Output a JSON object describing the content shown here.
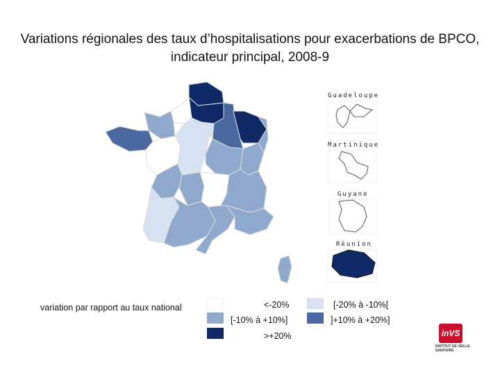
{
  "title": "Variations régionales des taux d’hospitalisations pour exacerbations de BPCO, indicateur principal, 2008-9",
  "colors": {
    "lt_m20": "#ffffff",
    "m20_m10": "#d6e2f2",
    "m10_p10": "#8ea9cb",
    "p10_p20": "#4a68a0",
    "gt_p20": "#0f2a66",
    "border": "#dddddd"
  },
  "overseas": {
    "guadeloupe": {
      "label": "Guadeloupe",
      "class": "lt_m20"
    },
    "martinique": {
      "label": "Martinique",
      "class": "lt_m20"
    },
    "guyane": {
      "label": "Guyane",
      "class": "lt_m20"
    },
    "reunion": {
      "label": "Réunion",
      "class": "gt_p20"
    }
  },
  "legend": {
    "title": "variation par rapport au taux national",
    "items": [
      {
        "key": "lt_m20",
        "label": "<-20%"
      },
      {
        "key": "m20_m10",
        "label": "[-20% à -10%["
      },
      {
        "key": "m10_p10",
        "label": "[-10% à +10%]"
      },
      {
        "key": "p10_p20",
        "label": "]+10% à +20%]"
      },
      {
        "key": "gt_p20",
        "label": ">+20%"
      }
    ]
  },
  "logo": {
    "mark": "inVS",
    "text": "INSTITUT DE VEILLE SANITAIRE"
  }
}
